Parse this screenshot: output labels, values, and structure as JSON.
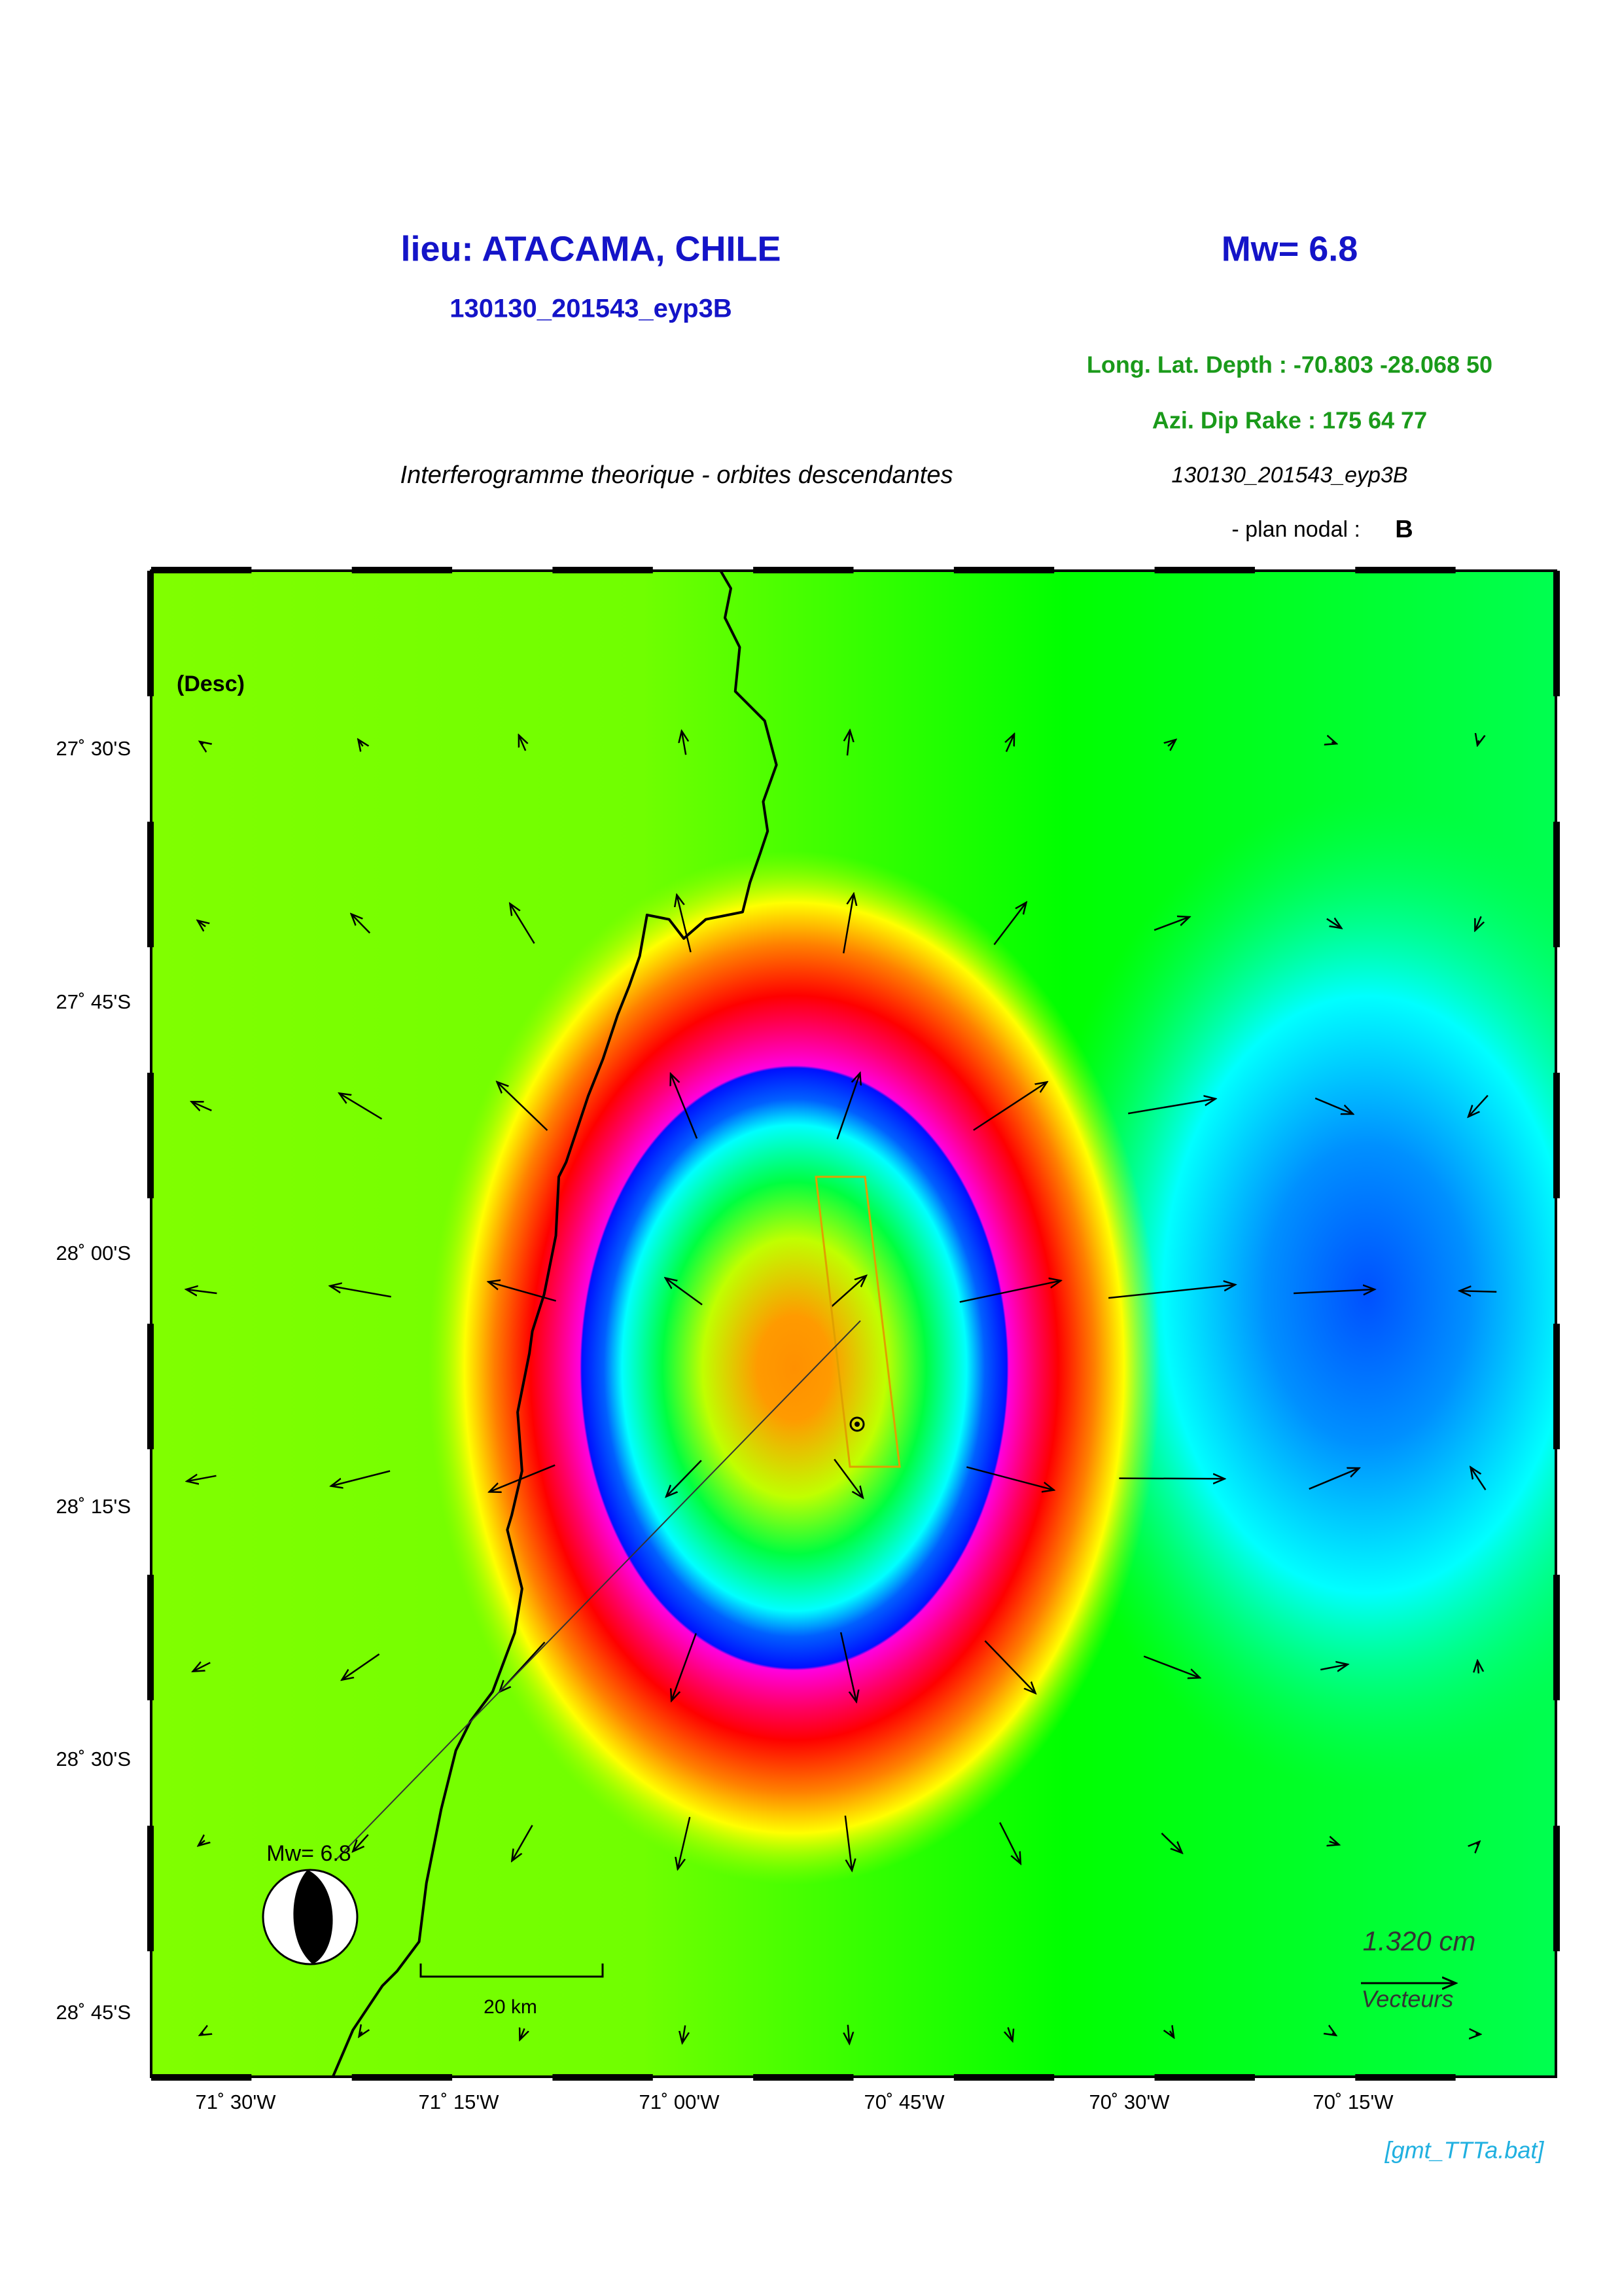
{
  "header": {
    "title": "lieu: ATACAMA, CHILE",
    "magnitude": "Mw= 6.8",
    "event_id": "130130_201543_eyp3B",
    "location": "Long. Lat. Depth : -70.803 -28.068 50",
    "mechanism": "Azi.  Dip   Rake :  175 64 77",
    "subtitle": "Interferogramme theorique - orbites descendantes",
    "event_id_italic": "130130_201543_eyp3B",
    "nodal_plane_label": "- plan nodal :",
    "nodal_plane": "B"
  },
  "map": {
    "orbit": "(Desc)",
    "y_ticks": [
      "27˚ 30'S",
      "27˚ 45'S",
      "28˚ 00'S",
      "28˚ 15'S",
      "28˚ 30'S",
      "28˚ 45'S"
    ],
    "x_ticks": [
      "71˚ 30'W",
      "71˚ 15'W",
      "71˚ 00'W",
      "70˚ 45'W",
      "70˚ 30'W",
      "70˚ 15'W"
    ],
    "beachball_label": "Mw= 6.8",
    "scale_bar": "20 km",
    "vector_scale": "1.320  cm",
    "vector_label": "Vecteurs"
  },
  "footer": "[gmt_TTTa.bat]"
}
